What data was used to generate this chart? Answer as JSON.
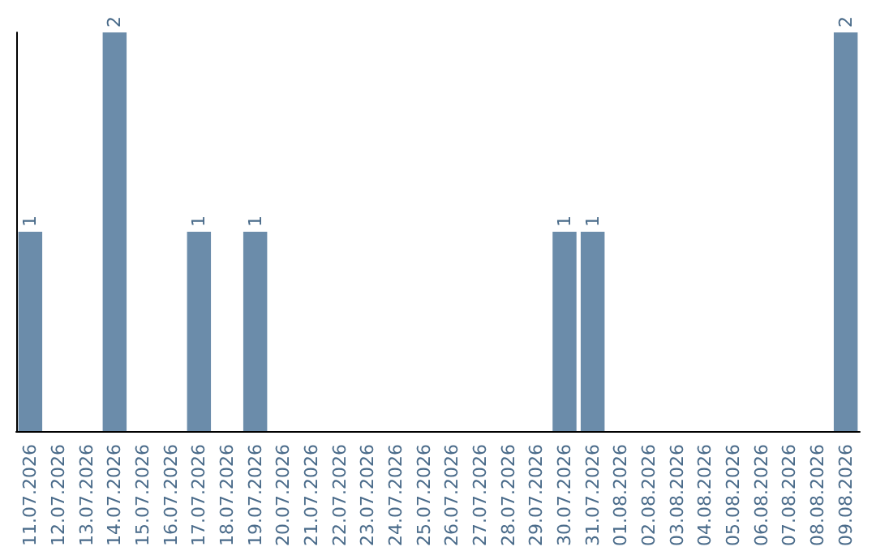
{
  "chart_data": {
    "type": "bar",
    "categories": [
      "11.07.2026",
      "12.07.2026",
      "13.07.2026",
      "14.07.2026",
      "15.07.2026",
      "16.07.2026",
      "17.07.2026",
      "18.07.2026",
      "19.07.2026",
      "20.07.2026",
      "21.07.2026",
      "22.07.2026",
      "23.07.2026",
      "24.07.2026",
      "25.07.2026",
      "26.07.2026",
      "27.07.2026",
      "28.07.2026",
      "29.07.2026",
      "30.07.2026",
      "31.07.2026",
      "01.08.2026",
      "02.08.2026",
      "03.08.2026",
      "04.08.2026",
      "05.08.2026",
      "06.08.2026",
      "07.08.2026",
      "08.08.2026",
      "09.08.2026"
    ],
    "values": [
      1,
      0,
      0,
      2,
      0,
      0,
      1,
      0,
      1,
      0,
      0,
      0,
      0,
      0,
      0,
      0,
      0,
      0,
      0,
      1,
      1,
      0,
      0,
      0,
      0,
      0,
      0,
      0,
      0,
      2
    ],
    "value_labels": [
      "1",
      null,
      null,
      "2",
      null,
      null,
      "1",
      null,
      "1",
      null,
      null,
      null,
      null,
      null,
      null,
      null,
      null,
      null,
      null,
      "1",
      "1",
      null,
      null,
      null,
      null,
      null,
      null,
      null,
      null,
      "2"
    ],
    "color": "#6b8caa",
    "grid": false,
    "tick_labels": "x"
  }
}
